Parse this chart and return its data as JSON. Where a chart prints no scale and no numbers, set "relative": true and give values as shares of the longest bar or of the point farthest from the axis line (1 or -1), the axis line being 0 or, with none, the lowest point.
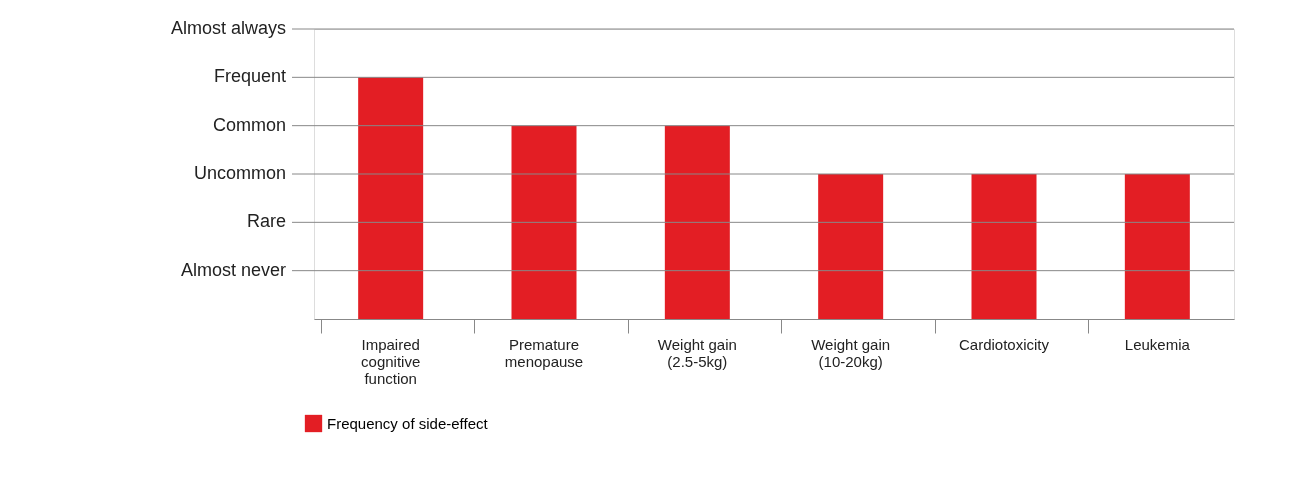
{
  "chart_data": {
    "type": "bar",
    "relative": true,
    "categories": [
      "Impaired\ncognitive\nfunction",
      "Premature\nmenopause",
      "Weight gain\n(2.5-5kg)",
      "Weight gain\n(10-20kg)",
      "Cardiotoxicity",
      "Leukemia"
    ],
    "series": [
      {
        "name": "Frequency of side-effect",
        "color": "#e31e24",
        "values": [
          1,
          0.8,
          0.8,
          0.6,
          0.6,
          0.6
        ]
      }
    ],
    "annotations": [
      "Almost never",
      "Rare",
      "Uncommon",
      "Common",
      "Frequent",
      "Almost always"
    ],
    "grid": "y",
    "legend": "bottom left"
  }
}
